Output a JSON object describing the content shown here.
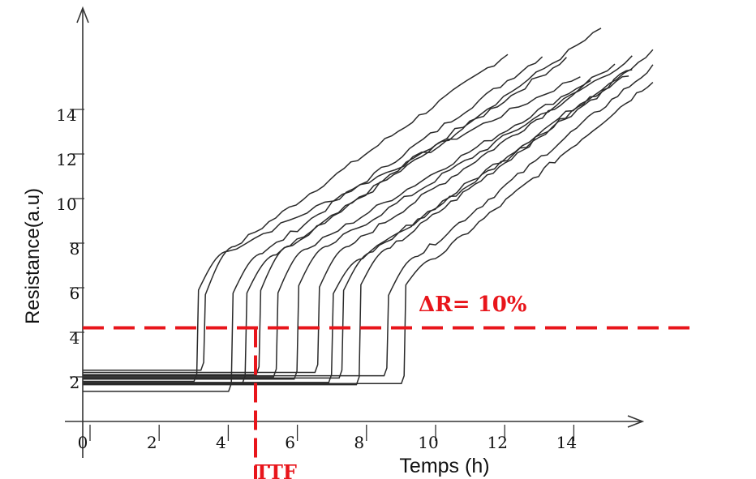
{
  "chart_data": {
    "type": "line",
    "xlabel": "Temps (h)",
    "ylabel": "Resistance(a.u)",
    "xlim": [
      0,
      16.5
    ],
    "ylim": [
      0,
      17.7
    ],
    "x_ticks": [
      "0",
      "2",
      "4",
      "6",
      "8",
      "10",
      "12",
      "14"
    ],
    "y_ticks": [
      "2",
      "4",
      "6",
      "8",
      "10",
      "12",
      "14"
    ],
    "threshold": {
      "label": "ΔR= 10%",
      "y": 4.2
    },
    "ttf": {
      "label": "TTF",
      "x": 5.0
    },
    "colors": {
      "curves": "#2a2a2a",
      "threshold": "#e8151b",
      "axes": "#333333"
    },
    "series": [
      {
        "base": 1.8,
        "x_jump": 3.3,
        "end": [
          14.4,
          15.5
        ]
      },
      {
        "base": 2.3,
        "x_jump": 3.5,
        "end": [
          12.3,
          16.5
        ]
      },
      {
        "base": 1.35,
        "x_jump": 4.3,
        "end": [
          13.3,
          16.4
        ]
      },
      {
        "base": 1.7,
        "x_jump": 4.7,
        "end": [
          15.0,
          17.6
        ]
      },
      {
        "base": 2.1,
        "x_jump": 5.1,
        "end": [
          14.0,
          16.3
        ]
      },
      {
        "base": 2.0,
        "x_jump": 5.6,
        "end": [
          15.4,
          16.0
        ]
      },
      {
        "base": 1.9,
        "x_jump": 6.2,
        "end": [
          15.9,
          16.3
        ]
      },
      {
        "base": 2.2,
        "x_jump": 6.8,
        "end": [
          14.7,
          15.2
        ]
      },
      {
        "base": 1.75,
        "x_jump": 7.2,
        "end": [
          16.5,
          16.6
        ]
      },
      {
        "base": 1.95,
        "x_jump": 7.5,
        "end": [
          15.8,
          15.6
        ]
      },
      {
        "base": 1.65,
        "x_jump": 8.0,
        "end": [
          15.9,
          15.9
        ]
      },
      {
        "base": 2.05,
        "x_jump": 8.8,
        "end": [
          16.5,
          15.9
        ]
      },
      {
        "base": 1.7,
        "x_jump": 9.3,
        "end": [
          16.5,
          15.3
        ]
      }
    ]
  }
}
